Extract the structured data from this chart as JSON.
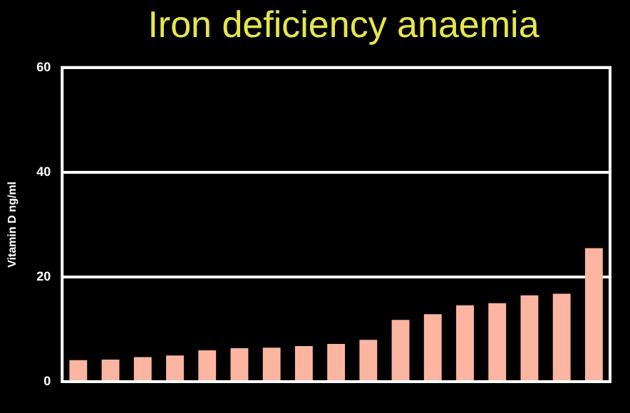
{
  "chart_data": {
    "type": "bar",
    "title": "Iron deficiency anaemia",
    "ylabel": "Vitamin D ng/ml",
    "categories": [
      null,
      null,
      null,
      null,
      null,
      null,
      null,
      null,
      null,
      null,
      null,
      null,
      null,
      null,
      null,
      null,
      null
    ],
    "values": [
      4.1,
      4.2,
      4.7,
      5.0,
      6.0,
      6.4,
      6.5,
      6.8,
      7.2,
      8.0,
      11.8,
      12.9,
      14.6,
      15.0,
      16.5,
      16.8,
      25.5
    ],
    "color": "#fbb5a0",
    "ylim": [
      0,
      60
    ],
    "yticks": [
      0,
      20,
      40,
      60
    ],
    "grid": "y",
    "legend": false
  }
}
